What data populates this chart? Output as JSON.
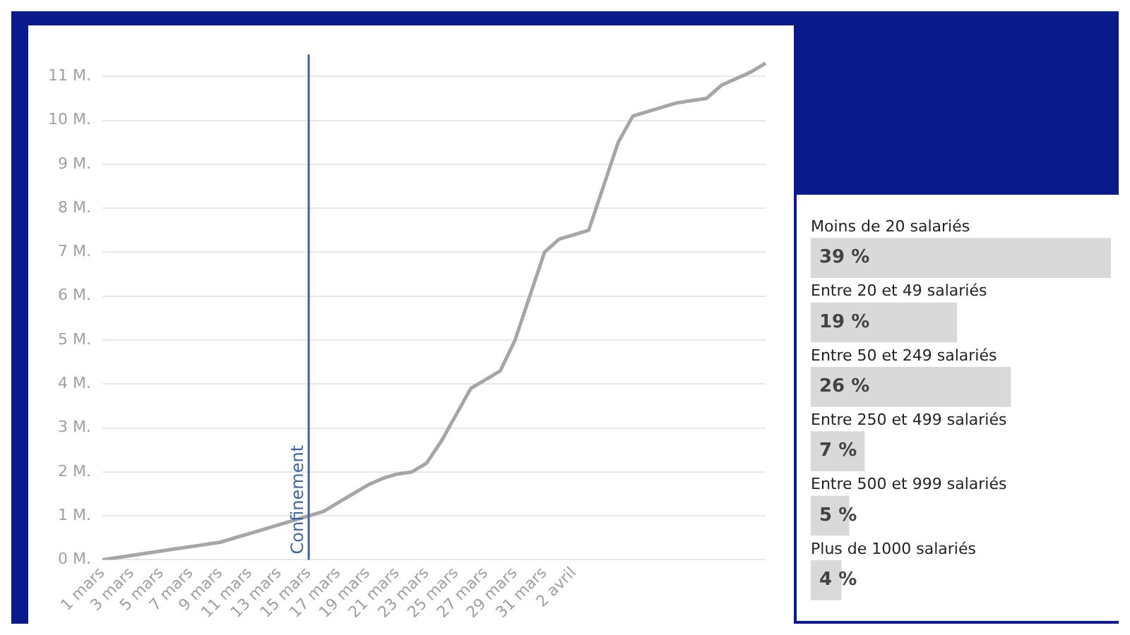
{
  "chart_data": [
    {
      "type": "line",
      "categories": [
        "1 mars",
        null,
        "3 mars",
        null,
        "5 mars",
        null,
        "7 mars",
        null,
        "9 mars",
        null,
        "11 mars",
        null,
        "13 mars",
        null,
        "15 mars",
        null,
        "17 mars",
        null,
        "19 mars",
        null,
        "21 mars",
        null,
        "23 mars",
        null,
        "25 mars",
        null,
        "27 mars",
        null,
        "29 mars",
        null,
        "31 mars",
        null,
        "2 avril",
        null,
        null,
        null,
        null,
        null,
        null,
        null,
        null,
        null,
        null,
        null,
        null,
        null
      ],
      "series": [
        {
          "color": "#a6a6a6",
          "values": [
            0,
            0.05,
            0.1,
            0.15,
            0.2,
            0.25,
            0.3,
            0.35,
            0.4,
            0.5,
            0.6,
            0.7,
            0.8,
            0.9,
            1.0,
            1.1,
            1.3,
            1.5,
            1.7,
            1.85,
            1.95,
            2.0,
            2.2,
            2.7,
            3.3,
            3.9,
            4.1,
            4.3,
            5.0,
            6.0,
            7.0,
            7.3,
            7.4,
            7.5,
            8.5,
            9.5,
            10.1,
            10.2,
            10.3,
            10.4,
            10.45,
            10.5,
            10.8,
            10.95,
            11.1,
            11.3
          ]
        }
      ],
      "ylim": [
        0,
        11.5
      ],
      "yticks": [
        {
          "value": 0,
          "label": "0 M."
        },
        {
          "value": 1,
          "label": "1 M."
        },
        {
          "value": 2,
          "label": "2 M."
        },
        {
          "value": 3,
          "label": "3 M."
        },
        {
          "value": 4,
          "label": "4 M."
        },
        {
          "value": 5,
          "label": "5 M."
        },
        {
          "value": 6,
          "label": "6 M."
        },
        {
          "value": 7,
          "label": "7 M."
        },
        {
          "value": 8,
          "label": "8 M."
        },
        {
          "value": 9,
          "label": "9 M."
        },
        {
          "value": 10,
          "label": "10 M."
        },
        {
          "value": 11,
          "label": "11 M."
        }
      ],
      "grid": "y",
      "ref_lines": [
        {
          "axis": "x",
          "value": "15 mars",
          "label": "Confinement",
          "color": "#3f63a8"
        }
      ]
    },
    {
      "type": "bar",
      "orientation": "horizontal",
      "categories": [
        "Moins de 20 salariés",
        "Entre 20 et 49 salariés",
        "Entre 50 et 249 salariés",
        "Entre 250 et 499 salariés",
        "Entre 500 et 999 salariés",
        "Plus de 1000 salariés"
      ],
      "values": [
        39,
        19,
        26,
        7,
        5,
        4
      ],
      "value_labels": [
        "39 %",
        "19 %",
        "26 %",
        "7 %",
        "5 %",
        "4 %"
      ],
      "color": "#d9d9d9"
    }
  ]
}
